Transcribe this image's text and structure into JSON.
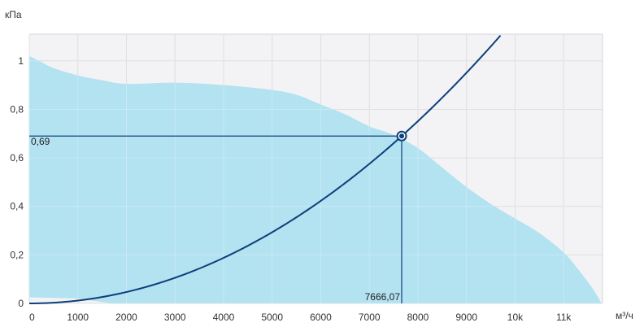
{
  "chart_data": {
    "type": "area",
    "xlabel": "м³/ч",
    "ylabel": "кПа",
    "xlim": [
      0,
      11800
    ],
    "ylim": [
      0,
      1.11
    ],
    "x_ticks": [
      {
        "value": 0,
        "label": "0"
      },
      {
        "value": 1000,
        "label": "1000"
      },
      {
        "value": 2000,
        "label": "2000"
      },
      {
        "value": 3000,
        "label": "3000"
      },
      {
        "value": 4000,
        "label": "4000"
      },
      {
        "value": 5000,
        "label": "5000"
      },
      {
        "value": 6000,
        "label": "6000"
      },
      {
        "value": 7000,
        "label": "7000"
      },
      {
        "value": 8000,
        "label": "8000"
      },
      {
        "value": 9000,
        "label": "9000"
      },
      {
        "value": 10000,
        "label": "10k"
      },
      {
        "value": 11000,
        "label": "11k"
      }
    ],
    "y_ticks": [
      {
        "value": 0,
        "label": "0"
      },
      {
        "value": 0.2,
        "label": "0,2"
      },
      {
        "value": 0.4,
        "label": "0,4"
      },
      {
        "value": 0.6,
        "label": "0,6"
      },
      {
        "value": 0.8,
        "label": "0,8"
      },
      {
        "value": 1.0,
        "label": "1"
      }
    ],
    "grid": true,
    "series": [
      {
        "type": "area",
        "color": "#b3e2f1",
        "upper": [
          [
            0,
            1.02
          ],
          [
            200,
            1.0
          ],
          [
            500,
            0.97
          ],
          [
            1000,
            0.94
          ],
          [
            1500,
            0.92
          ],
          [
            2000,
            0.905
          ],
          [
            3000,
            0.91
          ],
          [
            4000,
            0.9
          ],
          [
            5000,
            0.88
          ],
          [
            5500,
            0.86
          ],
          [
            6000,
            0.82
          ],
          [
            6500,
            0.78
          ],
          [
            7000,
            0.73
          ],
          [
            7500,
            0.695
          ],
          [
            8000,
            0.64
          ],
          [
            8500,
            0.56
          ],
          [
            9000,
            0.48
          ],
          [
            9500,
            0.41
          ],
          [
            10000,
            0.35
          ],
          [
            10500,
            0.29
          ],
          [
            11000,
            0.21
          ],
          [
            11300,
            0.14
          ],
          [
            11600,
            0.06
          ],
          [
            11780,
            0.0
          ]
        ],
        "lower": [
          [
            0,
            0.025
          ],
          [
            1000,
            0.02
          ],
          [
            1700,
            0.0
          ]
        ]
      },
      {
        "type": "line",
        "color": "#0d3f7a",
        "k": 1.1739e-08,
        "x_max": 9800
      }
    ],
    "operating_point": {
      "x": 7666.07,
      "y": 0.69,
      "x_label": "7666,07",
      "y_label": "0,69",
      "color": "#0d3f7a"
    }
  }
}
